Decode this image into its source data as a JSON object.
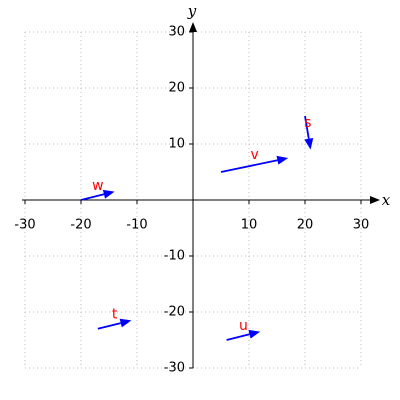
{
  "chart_data": {
    "type": "vector",
    "xlabel": "x",
    "ylabel": "y",
    "xlim": [
      -30,
      30
    ],
    "ylim": [
      -30,
      30
    ],
    "xticks": [
      -30,
      -20,
      -10,
      10,
      20,
      30
    ],
    "yticks": [
      -30,
      -20,
      -10,
      10,
      20,
      30
    ],
    "grid": true,
    "arrow_color": "#0000ff",
    "label_color": "#ff0000",
    "vectors": [
      {
        "name": "s",
        "start": [
          20,
          15
        ],
        "end": [
          21,
          9
        ]
      },
      {
        "name": "v",
        "start": [
          5,
          5
        ],
        "end": [
          17,
          7.5
        ]
      },
      {
        "name": "w",
        "start": [
          -20,
          0
        ],
        "end": [
          -14,
          1.5
        ]
      },
      {
        "name": "t",
        "start": [
          -17,
          -23
        ],
        "end": [
          -11,
          -21.5
        ]
      },
      {
        "name": "u",
        "start": [
          6,
          -25
        ],
        "end": [
          12,
          -23.5
        ]
      }
    ]
  }
}
